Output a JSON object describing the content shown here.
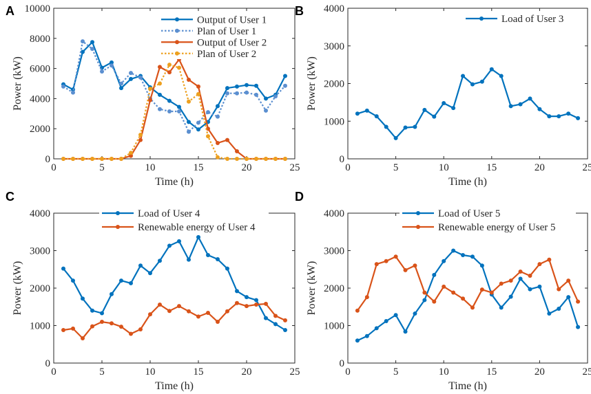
{
  "figure_title": "",
  "chart_data": [
    {
      "panel_label": "A",
      "type": "line",
      "xlabel": "Time (h)",
      "ylabel": "Power (kW)",
      "xlim": [
        0,
        25
      ],
      "ylim": [
        0,
        10000
      ],
      "xticks": [
        0,
        5,
        10,
        15,
        20,
        25
      ],
      "yticks": [
        0,
        2000,
        4000,
        6000,
        8000,
        10000
      ],
      "legend_position": "top-right",
      "x": [
        1,
        2,
        3,
        4,
        5,
        6,
        7,
        8,
        9,
        10,
        11,
        12,
        13,
        14,
        15,
        16,
        17,
        18,
        19,
        20,
        21,
        22,
        23,
        24
      ],
      "series": [
        {
          "name": "Output of User 1",
          "color": "#0072BD",
          "style": "solid",
          "values": [
            4950,
            4600,
            7100,
            7750,
            6050,
            6400,
            4700,
            5300,
            5500,
            4750,
            4250,
            3850,
            3450,
            2450,
            1950,
            2450,
            3500,
            4700,
            4800,
            4900,
            4850,
            4000,
            4250,
            5500
          ]
        },
        {
          "name": "Plan of User 1",
          "color": "#5B8FD0",
          "style": "dotted",
          "values": [
            4800,
            4400,
            7800,
            7300,
            5800,
            6200,
            5000,
            5700,
            5400,
            4000,
            3300,
            3150,
            3150,
            1800,
            2400,
            3100,
            2800,
            4350,
            4350,
            4400,
            4250,
            3200,
            4150,
            4850
          ]
        },
        {
          "name": "Output of User 2",
          "color": "#D95319",
          "style": "solid",
          "values": [
            0,
            0,
            0,
            0,
            0,
            0,
            0,
            200,
            1250,
            3900,
            6100,
            5750,
            6600,
            5250,
            4800,
            2000,
            1050,
            1250,
            500,
            0,
            0,
            0,
            0,
            0
          ]
        },
        {
          "name": "Plan of User 2",
          "color": "#EDA01F",
          "style": "dotted",
          "values": [
            0,
            0,
            0,
            0,
            0,
            0,
            0,
            400,
            1600,
            4650,
            5000,
            6250,
            6050,
            3800,
            4300,
            1500,
            100,
            0,
            0,
            0,
            0,
            0,
            0,
            0
          ]
        }
      ]
    },
    {
      "panel_label": "B",
      "type": "line",
      "xlabel": "Time (h)",
      "ylabel": "Power (kW)",
      "xlim": [
        0,
        25
      ],
      "ylim": [
        0,
        4000
      ],
      "xticks": [
        0,
        5,
        10,
        15,
        20,
        25
      ],
      "yticks": [
        0,
        1000,
        2000,
        3000,
        4000
      ],
      "legend_position": "top-right",
      "x": [
        1,
        2,
        3,
        4,
        5,
        6,
        7,
        8,
        9,
        10,
        11,
        12,
        13,
        14,
        15,
        16,
        17,
        18,
        19,
        20,
        21,
        22,
        23,
        24
      ],
      "series": [
        {
          "name": "Load of User 3",
          "color": "#0072BD",
          "style": "solid",
          "values": [
            1200,
            1280,
            1130,
            850,
            550,
            830,
            850,
            1300,
            1120,
            1480,
            1350,
            2200,
            1980,
            2050,
            2380,
            2200,
            1400,
            1450,
            1600,
            1320,
            1130,
            1130,
            1200,
            1080
          ]
        }
      ]
    },
    {
      "panel_label": "C",
      "type": "line",
      "xlabel": "Time (h)",
      "ylabel": "Power (kW)",
      "xlim": [
        0,
        25
      ],
      "ylim": [
        0,
        4000
      ],
      "xticks": [
        0,
        5,
        10,
        15,
        20,
        25
      ],
      "yticks": [
        0,
        1000,
        2000,
        3000,
        4000
      ],
      "legend_position": "top-center",
      "x": [
        1,
        2,
        3,
        4,
        5,
        6,
        7,
        8,
        9,
        10,
        11,
        12,
        13,
        14,
        15,
        16,
        17,
        18,
        19,
        20,
        21,
        22,
        23,
        24
      ],
      "series": [
        {
          "name": "Load of User 4",
          "color": "#0072BD",
          "style": "solid",
          "values": [
            2520,
            2200,
            1720,
            1400,
            1330,
            1840,
            2200,
            2130,
            2600,
            2400,
            2730,
            3130,
            3250,
            2760,
            3360,
            2880,
            2770,
            2520,
            1920,
            1760,
            1680,
            1200,
            1040,
            880
          ]
        },
        {
          "name": "Renewable energy of User 4",
          "color": "#D95319",
          "style": "solid",
          "values": [
            880,
            920,
            660,
            980,
            1100,
            1060,
            970,
            780,
            900,
            1300,
            1560,
            1390,
            1520,
            1380,
            1240,
            1340,
            1100,
            1380,
            1600,
            1520,
            1560,
            1580,
            1260,
            1140
          ]
        }
      ]
    },
    {
      "panel_label": "D",
      "type": "line",
      "xlabel": "Time (h)",
      "ylabel": "Power (kW)",
      "xlim": [
        0,
        25
      ],
      "ylim": [
        0,
        4000
      ],
      "xticks": [
        0,
        5,
        10,
        15,
        20,
        25
      ],
      "yticks": [
        0,
        1000,
        2000,
        3000,
        4000
      ],
      "legend_position": "top-center",
      "x": [
        1,
        2,
        3,
        4,
        5,
        6,
        7,
        8,
        9,
        10,
        11,
        12,
        13,
        14,
        15,
        16,
        17,
        18,
        19,
        20,
        21,
        22,
        23,
        24
      ],
      "series": [
        {
          "name": "Load of User 5",
          "color": "#0072BD",
          "style": "solid",
          "values": [
            600,
            720,
            930,
            1120,
            1280,
            840,
            1320,
            1680,
            2350,
            2720,
            3000,
            2880,
            2840,
            2600,
            1830,
            1480,
            1770,
            2250,
            1970,
            2040,
            1320,
            1450,
            1760,
            960
          ]
        },
        {
          "name": "Renewable energy of User 5",
          "color": "#D95319",
          "style": "solid",
          "values": [
            1400,
            1760,
            2640,
            2720,
            2840,
            2480,
            2600,
            1880,
            1640,
            2040,
            1880,
            1720,
            1480,
            1960,
            1880,
            2120,
            2200,
            2440,
            2330,
            2640,
            2760,
            1970,
            2200,
            1640
          ]
        }
      ]
    }
  ]
}
